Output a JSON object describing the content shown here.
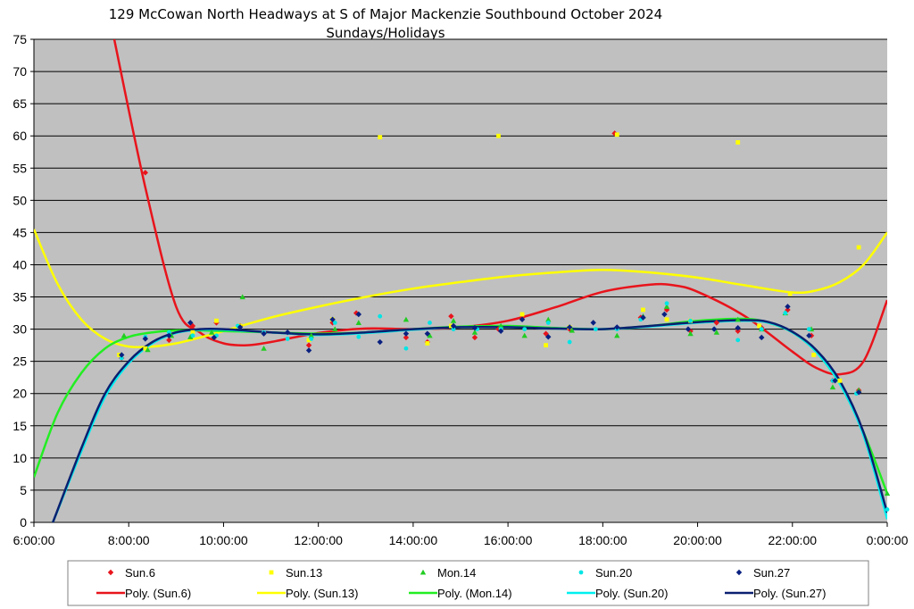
{
  "chart_data": {
    "type": "scatter",
    "title": "129 McCowan North Headways at S of Major Mackenzie Southbound October 2024",
    "subtitle": "Sundays/Holidays",
    "xlabel": "",
    "ylabel": "",
    "xlim": [
      6,
      24
    ],
    "ylim": [
      0,
      75
    ],
    "x_ticks": [
      "6:00:00",
      "8:00:00",
      "10:00:00",
      "12:00:00",
      "14:00:00",
      "16:00:00",
      "18:00:00",
      "20:00:00",
      "22:00:00",
      "0:00:00"
    ],
    "x_tick_values": [
      6,
      8,
      10,
      12,
      14,
      16,
      18,
      20,
      22,
      24
    ],
    "y_ticks": [
      0,
      5,
      10,
      15,
      20,
      25,
      30,
      35,
      40,
      45,
      50,
      55,
      60,
      65,
      70,
      75
    ],
    "grid": "horizontal",
    "plot_background": "#c0c0c0",
    "legend_position": "bottom",
    "series": [
      {
        "name": "Sun.6",
        "color": "#e8141c",
        "marker": "diamond",
        "x": [
          7.85,
          8.35,
          8.85,
          9.35,
          9.85,
          10.35,
          10.85,
          11.8,
          12.3,
          12.8,
          13.85,
          14.3,
          14.8,
          15.3,
          15.8,
          16.3,
          16.8,
          17.3,
          18.25,
          18.8,
          19.35,
          19.85,
          20.4,
          20.85,
          21.35,
          21.9,
          22.4,
          22.85,
          23.4
        ],
        "y": [
          25.5,
          54.3,
          28.3,
          30.5,
          31.0,
          30.5,
          29.5,
          27.5,
          31.0,
          32.5,
          28.7,
          28.0,
          32.0,
          28.7,
          30.0,
          31.8,
          29.3,
          30.0,
          60.4,
          31.8,
          33.0,
          29.7,
          31.0,
          29.7,
          30.2,
          33.0,
          29.0,
          22.0,
          20.5
        ]
      },
      {
        "name": "Sun.13",
        "color": "#ffff00",
        "marker": "square",
        "x": [
          7.8,
          8.35,
          9.35,
          9.85,
          10.35,
          11.8,
          12.3,
          13.3,
          14.3,
          14.8,
          15.8,
          16.3,
          16.8,
          17.3,
          18.3,
          18.85,
          19.35,
          19.85,
          20.85,
          21.3,
          21.95,
          22.45,
          23.0,
          23.4
        ],
        "y": [
          26.0,
          27.0,
          29.5,
          31.3,
          30.5,
          28.3,
          31.5,
          59.8,
          27.8,
          30.5,
          60.0,
          32.3,
          27.5,
          30.3,
          60.2,
          33.0,
          31.5,
          31.3,
          59.0,
          30.5,
          35.5,
          26.0,
          22.0,
          42.7
        ]
      },
      {
        "name": "Mon.14",
        "color": "#22cc22",
        "marker": "triangle",
        "x": [
          7.9,
          8.4,
          8.9,
          9.3,
          9.75,
          10.4,
          10.85,
          11.85,
          12.35,
          12.85,
          13.85,
          14.35,
          14.85,
          15.3,
          15.85,
          16.35,
          16.85,
          17.35,
          18.3,
          18.85,
          19.35,
          19.85,
          20.4,
          20.85,
          21.35,
          21.85,
          22.4,
          22.85,
          23.4,
          24.0
        ],
        "y": [
          29.0,
          26.8,
          29.0,
          28.8,
          29.5,
          35.0,
          27.0,
          29.0,
          30.0,
          31.0,
          31.5,
          29.0,
          31.3,
          29.5,
          30.5,
          29.0,
          31.5,
          29.8,
          29.0,
          32.0,
          33.5,
          29.3,
          29.5,
          31.5,
          30.0,
          32.5,
          30.0,
          21.0,
          20.5,
          4.5
        ]
      },
      {
        "name": "Sun.20",
        "color": "#00e5e5",
        "marker": "circle",
        "x": [
          7.85,
          8.35,
          8.85,
          9.35,
          9.85,
          10.3,
          10.85,
          11.35,
          11.85,
          12.35,
          12.85,
          13.3,
          13.85,
          14.35,
          14.85,
          15.35,
          15.85,
          16.35,
          16.85,
          17.3,
          17.85,
          18.3,
          18.8,
          19.35,
          19.85,
          20.35,
          20.85,
          21.35,
          21.85,
          22.35,
          22.85,
          23.35,
          24.0
        ],
        "y": [
          25.5,
          28.8,
          29.5,
          29.0,
          29.0,
          30.5,
          29.5,
          28.5,
          28.5,
          31.0,
          28.8,
          32.0,
          27.0,
          31.0,
          30.0,
          30.0,
          30.0,
          30.0,
          31.0,
          28.0,
          30.0,
          30.0,
          31.5,
          34.0,
          31.3,
          30.0,
          28.3,
          30.0,
          32.5,
          30.0,
          22.0,
          20.0,
          2.0
        ]
      },
      {
        "name": "Sun.27",
        "color": "#0a2080",
        "marker": "diamond",
        "x": [
          7.85,
          8.35,
          8.85,
          9.3,
          9.8,
          10.35,
          10.85,
          11.35,
          11.8,
          12.3,
          12.85,
          13.3,
          13.85,
          14.3,
          14.85,
          15.3,
          15.85,
          16.3,
          16.85,
          17.3,
          17.8,
          18.3,
          18.85,
          19.3,
          19.8,
          20.35,
          20.85,
          21.35,
          21.9,
          22.35,
          22.9,
          23.4
        ],
        "y": [
          26.0,
          28.5,
          29.0,
          31.0,
          28.7,
          30.3,
          29.3,
          29.5,
          26.7,
          31.5,
          32.3,
          28.0,
          29.3,
          29.3,
          30.5,
          30.2,
          29.7,
          31.5,
          28.8,
          30.3,
          31.0,
          30.3,
          31.8,
          32.3,
          30.0,
          30.0,
          30.2,
          28.7,
          33.5,
          29.0,
          22.0,
          20.2
        ]
      }
    ],
    "trendlines": [
      {
        "name": "Poly. (Sun.6)",
        "color": "#e8141c",
        "x": [
          8.35,
          9.0,
          9.5,
          10.0,
          10.5,
          11.0,
          12.0,
          13.0,
          14.0,
          15.0,
          16.0,
          17.0,
          18.0,
          19.0,
          19.5,
          20.0,
          21.0,
          22.0,
          22.5,
          23.0,
          23.5,
          24.0
        ],
        "y": [
          52,
          33.5,
          29.5,
          27.8,
          27.5,
          28.0,
          29.4,
          30.1,
          30.0,
          30.3,
          31.3,
          33.4,
          35.8,
          36.9,
          36.8,
          35.8,
          32.0,
          26.5,
          24.0,
          23.0,
          25.0,
          34.5
        ]
      },
      {
        "name": "Poly. (Sun.13)",
        "color": "#ffff00",
        "x": [
          6.0,
          6.5,
          7.0,
          7.5,
          8.0,
          8.5,
          9.0,
          9.5,
          10.0,
          11.0,
          12.0,
          13.0,
          14.0,
          15.0,
          16.0,
          17.0,
          18.0,
          19.0,
          20.0,
          21.0,
          22.0,
          22.5,
          23.0,
          23.5,
          24.0
        ],
        "y": [
          45.5,
          37.0,
          31.5,
          28.5,
          27.3,
          27.3,
          27.8,
          28.7,
          29.7,
          31.8,
          33.5,
          35.0,
          36.3,
          37.3,
          38.2,
          38.8,
          39.2,
          38.8,
          38.0,
          36.8,
          35.7,
          36.0,
          37.3,
          40.0,
          45.0
        ]
      },
      {
        "name": "Poly. (Mon.14)",
        "color": "#22ee22",
        "x": [
          6.0,
          6.5,
          7.0,
          7.5,
          8.0,
          8.5,
          9.0,
          9.5,
          10.0,
          11.0,
          12.0,
          13.0,
          14.0,
          15.0,
          16.0,
          17.0,
          18.0,
          19.0,
          20.0,
          21.0,
          21.5,
          22.0,
          22.5,
          23.0,
          23.5,
          24.0
        ],
        "y": [
          7.0,
          17.0,
          23.2,
          27.0,
          28.8,
          29.5,
          29.8,
          29.8,
          29.7,
          29.5,
          29.3,
          29.5,
          30.0,
          30.4,
          30.5,
          30.2,
          30.0,
          30.5,
          31.3,
          31.6,
          31.0,
          29.5,
          26.5,
          21.5,
          14.0,
          4.5
        ]
      },
      {
        "name": "Poly. (Sun.20)",
        "color": "#00f0f0",
        "x": [
          6.4,
          7.0,
          7.5,
          8.0,
          8.5,
          9.0,
          9.5,
          10.0,
          11.0,
          12.0,
          13.0,
          14.0,
          15.0,
          16.0,
          17.0,
          18.0,
          19.0,
          20.0,
          21.0,
          21.5,
          22.0,
          22.5,
          23.0,
          23.5,
          24.0
        ],
        "y": [
          0.0,
          11.0,
          19.5,
          24.7,
          27.8,
          29.4,
          29.9,
          29.9,
          29.5,
          29.1,
          29.4,
          29.9,
          30.3,
          30.3,
          30.1,
          30.0,
          30.4,
          31.0,
          31.3,
          31.0,
          29.5,
          26.5,
          21.5,
          13.5,
          0.5
        ]
      },
      {
        "name": "Poly. (Sun.27)",
        "color": "#0a2070",
        "x": [
          6.4,
          7.0,
          7.5,
          8.0,
          8.5,
          9.0,
          9.5,
          10.0,
          11.0,
          12.0,
          13.0,
          14.0,
          15.0,
          16.0,
          17.0,
          18.0,
          19.0,
          20.0,
          21.0,
          21.5,
          22.0,
          22.5,
          23.0,
          23.5,
          24.0
        ],
        "y": [
          0.0,
          11.5,
          20.0,
          25.0,
          28.0,
          29.5,
          30.0,
          30.0,
          29.5,
          29.2,
          29.5,
          30.0,
          30.3,
          30.3,
          30.1,
          30.0,
          30.5,
          31.1,
          31.4,
          31.1,
          29.6,
          26.8,
          22.0,
          14.0,
          1.5
        ]
      }
    ],
    "legend": {
      "row1": [
        "Sun.6",
        "Sun.13",
        "Mon.14",
        "Sun.20",
        "Sun.27"
      ],
      "row2": [
        "Poly. (Sun.6)",
        "Poly. (Sun.13)",
        "Poly. (Mon.14)",
        "Poly. (Sun.20)",
        "Poly. (Sun.27)"
      ]
    }
  }
}
